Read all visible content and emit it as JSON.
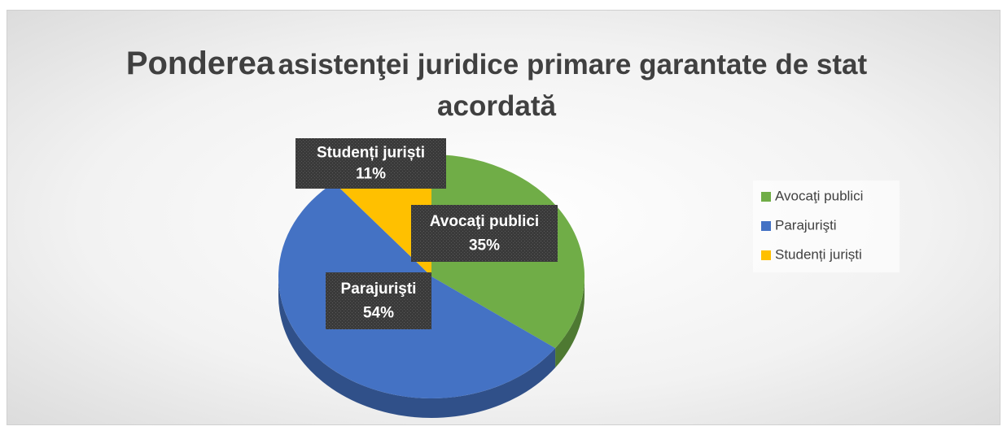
{
  "chart_data": {
    "type": "pie",
    "title": [
      "Ponderea",
      "asistenţei juridice primare garantate de stat acordată"
    ],
    "categories": [
      "Avocaţi publici",
      "Parajurişti",
      "Studenți juriști"
    ],
    "values": [
      35,
      54,
      11
    ],
    "value_labels": [
      "35%",
      "54%",
      "11%"
    ],
    "colors": [
      "#70ad47",
      "#4472c4",
      "#ffc000"
    ],
    "legend": "right"
  }
}
